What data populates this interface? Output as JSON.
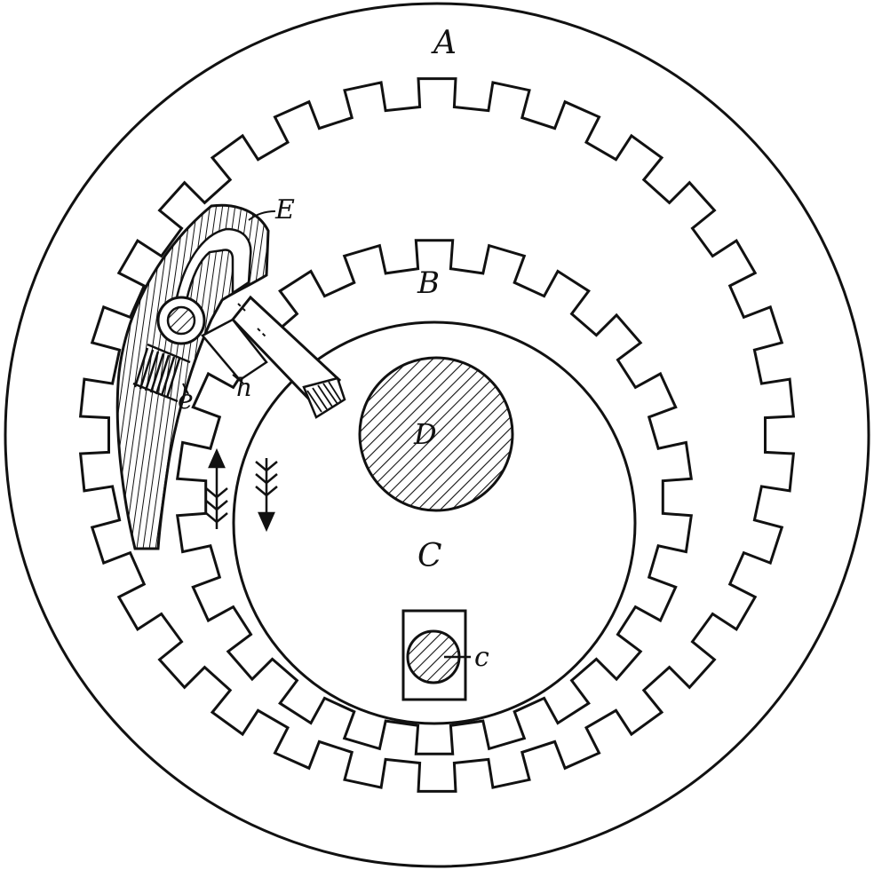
{
  "figure": {
    "ink_color": "#111111",
    "paper_color": "#ffffff",
    "hatch_style": "diagonal-lines",
    "labels": {
      "A": "A",
      "B": "B",
      "C": "C",
      "D": "D",
      "E": "E",
      "c": "c",
      "e": "e",
      "h": "h"
    },
    "parts": {
      "outer_disc": {
        "label_key": "A",
        "description_icon": "large-circle"
      },
      "outer_gear": {
        "label_key": "A",
        "tooth_count": 30
      },
      "inner_gear": {
        "label_key": "B",
        "tooth_count": 22
      },
      "hub_disc": {
        "label_key": "C"
      },
      "shaft": {
        "label_key": "D"
      },
      "pawl_arm": {
        "label_key": "E"
      },
      "pin": {
        "label_key": "c"
      },
      "spring": {
        "label_key": "e"
      },
      "plunger": {
        "label_key": "h"
      }
    },
    "arrows": [
      {
        "direction": "up",
        "icon": "arrow-up-icon"
      },
      {
        "direction": "down",
        "icon": "arrow-down-icon"
      }
    ]
  }
}
